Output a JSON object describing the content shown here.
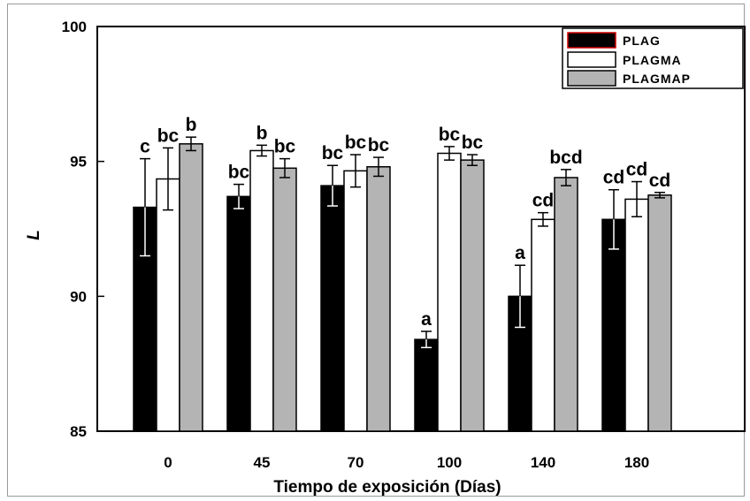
{
  "chart_data": {
    "type": "bar",
    "title": "",
    "xlabel": "Tiempo de exposición (Días)",
    "ylabel": "L",
    "ylim": [
      85,
      100
    ],
    "yticks": [
      85,
      90,
      95,
      100
    ],
    "grid": false,
    "legend_position": "top-right",
    "categories": [
      "0",
      "45",
      "70",
      "100",
      "140",
      "180"
    ],
    "series": [
      {
        "name": "PLAG",
        "color": "#000000",
        "values": [
          93.3,
          93.7,
          94.1,
          88.4,
          90.0,
          92.85
        ],
        "errors": [
          1.8,
          0.45,
          0.75,
          0.3,
          1.15,
          1.1
        ],
        "labels": [
          "c",
          "bc",
          "bc",
          "a",
          "a",
          "cd"
        ]
      },
      {
        "name": "PLAGMA",
        "color": "#ffffff",
        "values": [
          94.35,
          95.4,
          94.65,
          95.3,
          92.85,
          93.6
        ],
        "errors": [
          1.15,
          0.2,
          0.6,
          0.25,
          0.25,
          0.65
        ],
        "labels": [
          "bc",
          "b",
          "bc",
          "bc",
          "cd",
          "cd"
        ]
      },
      {
        "name": "PLAGMAP",
        "color": "#b4b4b4",
        "values": [
          95.65,
          94.75,
          94.8,
          95.05,
          94.4,
          93.75
        ],
        "errors": [
          0.25,
          0.35,
          0.35,
          0.2,
          0.3,
          0.1
        ],
        "labels": [
          "b",
          "bc",
          "bc",
          "bc",
          "bcd",
          "cd"
        ]
      }
    ]
  }
}
